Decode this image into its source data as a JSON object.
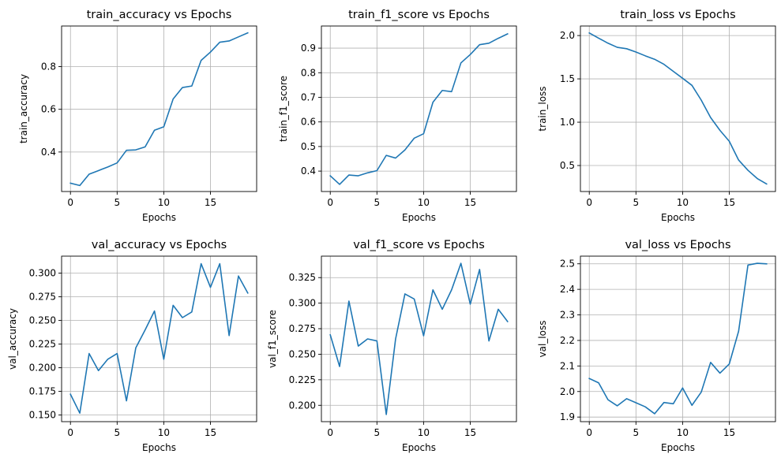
{
  "colors": {
    "line": "#1f77b4",
    "grid": "#b0b0b0"
  },
  "chart_data": [
    {
      "type": "line",
      "title": "train_accuracy vs Epochs",
      "xlabel": "Epochs",
      "ylabel": "train_accuracy",
      "grid": true,
      "xlim": [
        -0.95,
        19.95
      ],
      "ylim": [
        0.215,
        0.99
      ],
      "xticks": [
        0,
        5,
        10,
        15
      ],
      "yticks": [
        0.4,
        0.6,
        0.8
      ],
      "x": [
        0,
        1,
        2,
        3,
        4,
        5,
        6,
        7,
        8,
        9,
        10,
        11,
        12,
        13,
        14,
        15,
        16,
        17,
        18,
        19
      ],
      "series": [
        {
          "values": [
            0.254,
            0.243,
            0.296,
            0.313,
            0.33,
            0.349,
            0.408,
            0.41,
            0.424,
            0.502,
            0.518,
            0.648,
            0.702,
            0.709,
            0.829,
            0.868,
            0.914,
            0.92,
            0.939,
            0.958
          ]
        }
      ]
    },
    {
      "type": "line",
      "title": "train_f1_score vs Epochs",
      "xlabel": "Epochs",
      "ylabel": "train_f1_score",
      "grid": true,
      "xlim": [
        -0.95,
        19.95
      ],
      "ylim": [
        0.317,
        0.99
      ],
      "xticks": [
        0,
        5,
        10,
        15
      ],
      "yticks": [
        0.4,
        0.5,
        0.6,
        0.7,
        0.8,
        0.9
      ],
      "x": [
        0,
        1,
        2,
        3,
        4,
        5,
        6,
        7,
        8,
        9,
        10,
        11,
        12,
        13,
        14,
        15,
        16,
        17,
        18,
        19
      ],
      "series": [
        {
          "values": [
            0.381,
            0.346,
            0.384,
            0.381,
            0.393,
            0.402,
            0.464,
            0.453,
            0.486,
            0.534,
            0.552,
            0.68,
            0.728,
            0.723,
            0.84,
            0.874,
            0.914,
            0.92,
            0.94,
            0.958
          ]
        }
      ]
    },
    {
      "type": "line",
      "title": "train_loss vs Epochs",
      "xlabel": "Epochs",
      "ylabel": "train_loss",
      "grid": true,
      "xlim": [
        -0.95,
        19.95
      ],
      "ylim": [
        0.2,
        2.11
      ],
      "xticks": [
        0,
        5,
        10,
        15
      ],
      "yticks": [
        0.5,
        1.0,
        1.5,
        2.0
      ],
      "x": [
        0,
        1,
        2,
        3,
        4,
        5,
        6,
        7,
        8,
        9,
        10,
        11,
        12,
        13,
        14,
        15,
        16,
        17,
        18,
        19
      ],
      "series": [
        {
          "values": [
            2.03,
            1.97,
            1.912,
            1.864,
            1.848,
            1.81,
            1.766,
            1.726,
            1.668,
            1.587,
            1.507,
            1.425,
            1.254,
            1.054,
            0.906,
            0.78,
            0.563,
            0.445,
            0.35,
            0.287
          ]
        }
      ]
    },
    {
      "type": "line",
      "title": "val_accuracy vs Epochs",
      "xlabel": "Epochs",
      "ylabel": "val_accuracy",
      "grid": true,
      "xlim": [
        -0.95,
        19.95
      ],
      "ylim": [
        0.143,
        0.318
      ],
      "xticks": [
        0,
        5,
        10,
        15
      ],
      "yticks": [
        0.15,
        0.175,
        0.2,
        0.225,
        0.25,
        0.275,
        0.3
      ],
      "x": [
        0,
        1,
        2,
        3,
        4,
        5,
        6,
        7,
        8,
        9,
        10,
        11,
        12,
        13,
        14,
        15,
        16,
        17,
        18,
        19
      ],
      "series": [
        {
          "values": [
            0.172,
            0.152,
            0.215,
            0.197,
            0.209,
            0.215,
            0.165,
            0.221,
            0.24,
            0.26,
            0.209,
            0.266,
            0.253,
            0.259,
            0.31,
            0.285,
            0.31,
            0.234,
            0.297,
            0.279
          ]
        }
      ]
    },
    {
      "type": "line",
      "title": "val_f1_score vs Epochs",
      "xlabel": "Epochs",
      "ylabel": "val_f1_score",
      "grid": true,
      "xlim": [
        -0.95,
        19.95
      ],
      "ylim": [
        0.184,
        0.346
      ],
      "xticks": [
        0,
        5,
        10,
        15
      ],
      "yticks": [
        0.2,
        0.225,
        0.25,
        0.275,
        0.3,
        0.325
      ],
      "x": [
        0,
        1,
        2,
        3,
        4,
        5,
        6,
        7,
        8,
        9,
        10,
        11,
        12,
        13,
        14,
        15,
        16,
        17,
        18,
        19
      ],
      "series": [
        {
          "values": [
            0.269,
            0.238,
            0.302,
            0.258,
            0.265,
            0.263,
            0.191,
            0.265,
            0.309,
            0.304,
            0.268,
            0.313,
            0.294,
            0.313,
            0.339,
            0.299,
            0.333,
            0.263,
            0.294,
            0.282
          ]
        }
      ]
    },
    {
      "type": "line",
      "title": "val_loss vs Epochs",
      "xlabel": "Epochs",
      "ylabel": "val_loss",
      "grid": true,
      "xlim": [
        -0.95,
        19.95
      ],
      "ylim": [
        1.882,
        2.53
      ],
      "xticks": [
        0,
        5,
        10,
        15
      ],
      "yticks": [
        1.9,
        2.0,
        2.1,
        2.2,
        2.3,
        2.4,
        2.5
      ],
      "x": [
        0,
        1,
        2,
        3,
        4,
        5,
        6,
        7,
        8,
        9,
        10,
        11,
        12,
        13,
        14,
        15,
        16,
        17,
        18,
        19
      ],
      "series": [
        {
          "values": [
            2.051,
            2.034,
            1.968,
            1.944,
            1.972,
            1.956,
            1.94,
            1.913,
            1.957,
            1.952,
            2.014,
            1.946,
            1.998,
            2.114,
            2.072,
            2.108,
            2.236,
            2.495,
            2.502,
            2.5
          ]
        }
      ]
    }
  ]
}
